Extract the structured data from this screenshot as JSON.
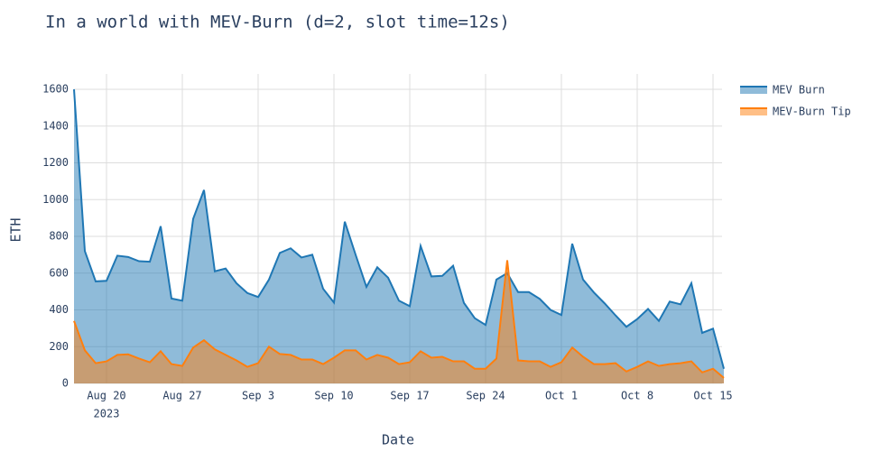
{
  "chart_data": {
    "type": "area",
    "title": "In a world with MEV-Burn (d=2, slot time=12s)",
    "x_label": "Date",
    "y_label": "ETH",
    "x": [
      "2023-08-17",
      "2023-08-18",
      "2023-08-19",
      "2023-08-20",
      "2023-08-21",
      "2023-08-22",
      "2023-08-23",
      "2023-08-24",
      "2023-08-25",
      "2023-08-26",
      "2023-08-27",
      "2023-08-28",
      "2023-08-29",
      "2023-08-30",
      "2023-08-31",
      "2023-09-01",
      "2023-09-02",
      "2023-09-03",
      "2023-09-04",
      "2023-09-05",
      "2023-09-06",
      "2023-09-07",
      "2023-09-08",
      "2023-09-09",
      "2023-09-10",
      "2023-09-11",
      "2023-09-12",
      "2023-09-13",
      "2023-09-14",
      "2023-09-15",
      "2023-09-16",
      "2023-09-17",
      "2023-09-18",
      "2023-09-19",
      "2023-09-20",
      "2023-09-21",
      "2023-09-22",
      "2023-09-23",
      "2023-09-24",
      "2023-09-25",
      "2023-09-26",
      "2023-09-27",
      "2023-09-28",
      "2023-09-29",
      "2023-09-30",
      "2023-10-01",
      "2023-10-02",
      "2023-10-03",
      "2023-10-04",
      "2023-10-05",
      "2023-10-06",
      "2023-10-07",
      "2023-10-08",
      "2023-10-09",
      "2023-10-10",
      "2023-10-11",
      "2023-10-12",
      "2023-10-13",
      "2023-10-14",
      "2023-10-15",
      "2023-10-16"
    ],
    "series": [
      {
        "name": "MEV Burn",
        "color": "#1f77b4",
        "values": [
          1600,
          720,
          555,
          558,
          695,
          688,
          665,
          662,
          855,
          462,
          450,
          895,
          1052,
          610,
          625,
          545,
          492,
          470,
          565,
          710,
          735,
          685,
          700,
          515,
          440,
          880,
          700,
          525,
          632,
          575,
          450,
          420,
          748,
          582,
          585,
          640,
          438,
          355,
          318,
          565,
          600,
          497,
          497,
          460,
          400,
          372,
          760,
          565,
          495,
          435,
          370,
          308,
          350,
          405,
          340,
          445,
          430,
          545,
          275,
          298,
          80
        ]
      },
      {
        "name": "MEV-Burn Tip",
        "color": "#ff7f0e",
        "values": [
          340,
          180,
          110,
          120,
          155,
          158,
          135,
          115,
          175,
          105,
          95,
          195,
          235,
          185,
          155,
          125,
          90,
          110,
          200,
          160,
          155,
          130,
          130,
          105,
          140,
          180,
          180,
          130,
          155,
          140,
          105,
          115,
          175,
          140,
          145,
          120,
          120,
          80,
          80,
          135,
          670,
          125,
          120,
          120,
          90,
          115,
          195,
          145,
          105,
          105,
          110,
          65,
          90,
          120,
          95,
          105,
          110,
          120,
          60,
          80,
          30
        ]
      }
    ],
    "xlim": [
      "2023-08-17",
      "2023-10-16"
    ],
    "xticks": [
      {
        "value": "2023-08-20",
        "label": "Aug 20"
      },
      {
        "value": "2023-08-27",
        "label": "Aug 27"
      },
      {
        "value": "2023-09-03",
        "label": "Sep 3"
      },
      {
        "value": "2023-09-10",
        "label": "Sep 10"
      },
      {
        "value": "2023-09-17",
        "label": "Sep 17"
      },
      {
        "value": "2023-09-24",
        "label": "Sep 24"
      },
      {
        "value": "2023-10-01",
        "label": "Oct 1"
      },
      {
        "value": "2023-10-08",
        "label": "Oct 8"
      },
      {
        "value": "2023-10-15",
        "label": "Oct 15"
      }
    ],
    "x_year_label": "2023",
    "ylim": [
      0,
      1600
    ],
    "yticks": [
      0,
      200,
      400,
      600,
      800,
      1000,
      1200,
      1400,
      1600
    ],
    "grid": true,
    "legend": "right"
  }
}
